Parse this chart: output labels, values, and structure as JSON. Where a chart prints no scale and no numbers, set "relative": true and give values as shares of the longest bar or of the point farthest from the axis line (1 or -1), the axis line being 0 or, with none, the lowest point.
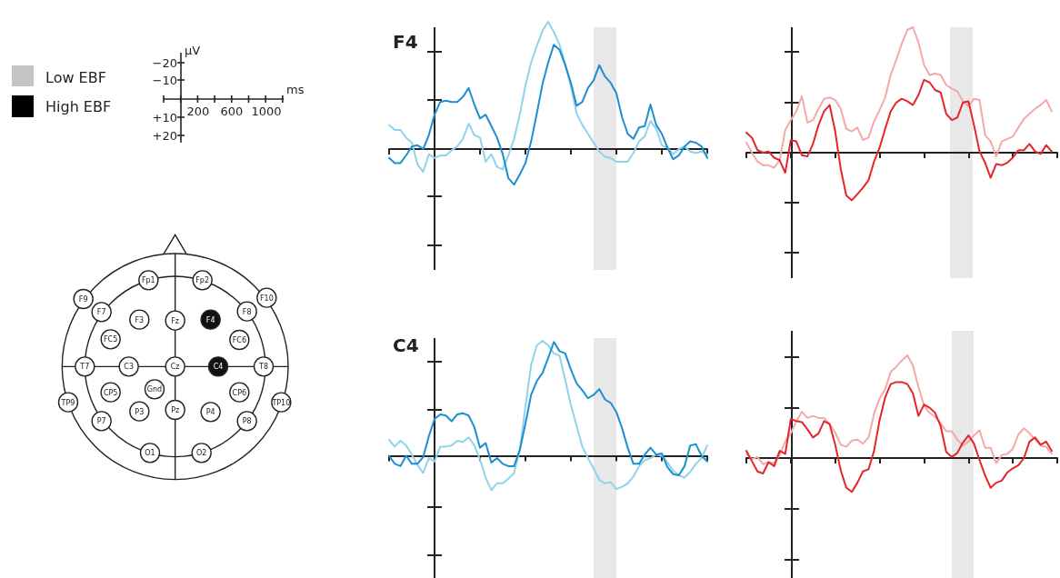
{
  "chart_data": [
    {
      "type": "line",
      "title": "F4",
      "relative": true,
      "categories": [
        null,
        null,
        null,
        null,
        null,
        null,
        null,
        null,
        null,
        null,
        null,
        null,
        null,
        null,
        null,
        null,
        null,
        null,
        null,
        null,
        null,
        null,
        null,
        null,
        null,
        null,
        null,
        null,
        null,
        null,
        null,
        null,
        null,
        null,
        null,
        null,
        null,
        null,
        null,
        null,
        null,
        null,
        null,
        null,
        null,
        null,
        null,
        null,
        null,
        null,
        null,
        null,
        null,
        null,
        null,
        null,
        null
      ],
      "series": [
        {
          "color": "#8fd3ea",
          "values": [
            0.19,
            0.15,
            0.15,
            0.09,
            0.05,
            -0.12,
            -0.18,
            -0.04,
            -0.07,
            -0.05,
            -0.05,
            -0.01,
            0.02,
            0.08,
            0.2,
            0.11,
            0.09,
            -0.1,
            -0.04,
            -0.14,
            -0.16,
            -0.05,
            0.08,
            0.27,
            0.5,
            0.68,
            0.81,
            0.93,
            1,
            0.92,
            0.82,
            0.67,
            0.49,
            0.28,
            0.19,
            0.12,
            0.05,
            -0.02,
            -0.06,
            -0.07,
            -0.1,
            -0.1,
            -0.1,
            -0.03,
            0.06,
            0.1,
            0.22,
            0.16,
            0.03,
            0.01,
            -0.04,
            0,
            0.02,
            -0.02,
            -0.03,
            -0.02,
            -0.04
          ]
        },
        {
          "color": "#1b8fcf",
          "values": [
            -0.07,
            -0.11,
            -0.11,
            -0.05,
            0.02,
            0.03,
            0,
            0.11,
            0.27,
            0.37,
            0.38,
            0.37,
            0.37,
            0.41,
            0.48,
            0.35,
            0.24,
            0.27,
            0.18,
            0.09,
            -0.04,
            -0.23,
            -0.28,
            -0.2,
            -0.11,
            0.06,
            0.28,
            0.51,
            0.68,
            0.82,
            0.78,
            0.66,
            0.52,
            0.34,
            0.37,
            0.48,
            0.54,
            0.66,
            0.57,
            0.52,
            0.44,
            0.25,
            0.12,
            0.08,
            0.17,
            0.18,
            0.35,
            0.19,
            0.12,
            0.01,
            -0.08,
            -0.05,
            0.02,
            0.06,
            0.05,
            0.02,
            -0.07
          ]
        }
      ]
    },
    {
      "type": "line",
      "relative": true,
      "categories": [
        null,
        null,
        null,
        null,
        null,
        null,
        null,
        null,
        null,
        null,
        null,
        null,
        null,
        null,
        null,
        null,
        null,
        null,
        null,
        null,
        null,
        null,
        null,
        null,
        null,
        null,
        null,
        null,
        null,
        null,
        null,
        null,
        null,
        null,
        null,
        null,
        null,
        null,
        null,
        null,
        null,
        null,
        null,
        null,
        null,
        null,
        null,
        null,
        null,
        null,
        null,
        null,
        null,
        null,
        null,
        null,
        null
      ],
      "series": [
        {
          "color": "#f4a9a9",
          "values": [
            0.08,
            0,
            -0.07,
            -0.1,
            -0.1,
            -0.12,
            -0.06,
            0.18,
            0.26,
            0.33,
            0.45,
            0.24,
            0.26,
            0.35,
            0.43,
            0.44,
            0.42,
            0.35,
            0.19,
            0.17,
            0.2,
            0.1,
            0.12,
            0.25,
            0.34,
            0.44,
            0.62,
            0.74,
            0.87,
            0.98,
            1,
            0.88,
            0.7,
            0.62,
            0.63,
            0.62,
            0.54,
            0.51,
            0.49,
            0.41,
            0.37,
            0.43,
            0.42,
            0.14,
            0.09,
            -0.03,
            0.09,
            0.11,
            0.13,
            0.2,
            0.27,
            0.31,
            0.35,
            0.38,
            0.42,
            0.33,
            null
          ]
        },
        {
          "color": "#e4262a",
          "values": [
            0.16,
            0.12,
            0.02,
            0,
            0.01,
            -0.04,
            -0.06,
            -0.16,
            0.1,
            0.09,
            -0.02,
            -0.03,
            0.07,
            0.22,
            0.33,
            0.38,
            0.17,
            -0.13,
            -0.34,
            -0.38,
            -0.33,
            -0.28,
            -0.22,
            -0.07,
            0.04,
            0.19,
            0.33,
            0.4,
            0.43,
            0.41,
            0.38,
            0.46,
            0.58,
            0.56,
            0.5,
            0.48,
            0.31,
            0.26,
            0.28,
            0.4,
            0.41,
            0.22,
            0.01,
            -0.08,
            -0.2,
            -0.09,
            -0.1,
            -0.08,
            -0.04,
            0.02,
            0.02,
            0.07,
            0.01,
            -0.01,
            0.06,
            0.01,
            null
          ]
        }
      ]
    },
    {
      "type": "line",
      "title": "C4",
      "relative": true,
      "categories": [
        null,
        null,
        null,
        null,
        null,
        null,
        null,
        null,
        null,
        null,
        null,
        null,
        null,
        null,
        null,
        null,
        null,
        null,
        null,
        null,
        null,
        null,
        null,
        null,
        null,
        null,
        null,
        null,
        null,
        null,
        null,
        null,
        null,
        null,
        null,
        null,
        null,
        null,
        null,
        null,
        null,
        null,
        null,
        null,
        null,
        null,
        null,
        null,
        null,
        null,
        null,
        null,
        null,
        null,
        null,
        null,
        null
      ],
      "series": [
        {
          "color": "#8fd3ea",
          "values": [
            0.14,
            0.08,
            0.13,
            0.09,
            0.01,
            -0.08,
            -0.15,
            -0.02,
            -0.05,
            0.08,
            0.08,
            0.09,
            0.13,
            0.12,
            0.16,
            0.09,
            -0.03,
            -0.19,
            -0.3,
            -0.24,
            -0.24,
            -0.2,
            -0.15,
            0.05,
            0.43,
            0.79,
            0.96,
            1,
            0.96,
            0.89,
            0.87,
            0.66,
            0.44,
            0.26,
            0.08,
            -0.02,
            -0.11,
            -0.21,
            -0.24,
            -0.23,
            -0.29,
            -0.27,
            -0.24,
            -0.18,
            -0.09,
            -0.04,
            -0.02,
            0.01,
            0,
            -0.06,
            -0.13,
            -0.17,
            -0.19,
            -0.14,
            -0.07,
            -0.02,
            0.09
          ]
        },
        {
          "color": "#1b8fcf",
          "values": [
            0,
            -0.07,
            -0.09,
            0,
            -0.07,
            -0.07,
            -0.01,
            0.17,
            0.32,
            0.36,
            0.35,
            0.3,
            0.36,
            0.37,
            0.35,
            0.25,
            0.07,
            0.11,
            -0.06,
            -0.02,
            -0.07,
            -0.09,
            -0.09,
            0.05,
            0.28,
            0.53,
            0.65,
            0.72,
            0.85,
            0.99,
            0.91,
            0.89,
            0.75,
            0.63,
            0.57,
            0.5,
            0.53,
            0.58,
            0.49,
            0.46,
            0.38,
            0.24,
            0.07,
            -0.07,
            -0.07,
            0.01,
            0.07,
            0.01,
            0.02,
            -0.1,
            -0.16,
            -0.17,
            -0.09,
            0.09,
            0.1,
            0,
            -0.05
          ]
        }
      ]
    },
    {
      "type": "line",
      "relative": true,
      "categories": [
        null,
        null,
        null,
        null,
        null,
        null,
        null,
        null,
        null,
        null,
        null,
        null,
        null,
        null,
        null,
        null,
        null,
        null,
        null,
        null,
        null,
        null,
        null,
        null,
        null,
        null,
        null,
        null,
        null,
        null,
        null,
        null,
        null,
        null,
        null,
        null,
        null,
        null,
        null,
        null,
        null,
        null,
        null,
        null,
        null,
        null,
        null,
        null,
        null,
        null,
        null,
        null,
        null,
        null,
        null,
        null,
        null
      ],
      "series": [
        {
          "color": "#f4a9a9",
          "values": [
            0.04,
            -0.01,
            0.01,
            -0.06,
            -0.04,
            -0.05,
            0.03,
            0.16,
            0.24,
            0.36,
            0.45,
            0.39,
            0.41,
            0.39,
            0.39,
            0.33,
            0.25,
            0.13,
            0.11,
            0.17,
            0.18,
            0.14,
            0.2,
            0.43,
            0.58,
            0.67,
            0.84,
            0.89,
            0.95,
            1,
            0.9,
            0.69,
            0.51,
            0.44,
            0.4,
            0.34,
            0.26,
            0.26,
            0.18,
            0.12,
            0.16,
            0.22,
            0.27,
            0.1,
            0.1,
            -0.05,
            0.03,
            0.04,
            0.09,
            0.23,
            0.29,
            0.24,
            0.18,
            0.12,
            0.11,
            0.04,
            null
          ]
        },
        {
          "color": "#e4262a",
          "values": [
            0.07,
            -0.03,
            -0.13,
            -0.15,
            -0.04,
            -0.08,
            0.07,
            0.04,
            0.38,
            0.36,
            0.35,
            0.28,
            0.2,
            0.24,
            0.36,
            0.33,
            0.13,
            -0.12,
            -0.29,
            -0.33,
            -0.24,
            -0.13,
            -0.11,
            0.07,
            0.37,
            0.59,
            0.72,
            0.74,
            0.74,
            0.72,
            0.63,
            0.41,
            0.52,
            0.49,
            0.44,
            0.31,
            0.06,
            0.01,
            0.05,
            0.15,
            0.22,
            0.14,
            -0.02,
            -0.17,
            -0.29,
            -0.24,
            -0.22,
            -0.14,
            -0.1,
            -0.07,
            0,
            0.16,
            0.2,
            0.13,
            0.16,
            0.07,
            null
          ]
        }
      ]
    },
    {
      "type": "other",
      "annotations": [
        "Low EBF",
        "High EBF",
        "µV",
        "−20",
        "−10",
        "+10",
        "+20",
        "ms",
        "200",
        "600",
        "1000"
      ]
    },
    {
      "type": "other",
      "annotations": [
        "Fp1",
        "Fp2",
        "F9",
        "F10",
        "F7",
        "F3",
        "Fz",
        "F4",
        "F8",
        "FC5",
        "FC6",
        "T7",
        "C3",
        "Cz",
        "C4",
        "T8",
        "TP9",
        "CP5",
        "Gnd",
        "CP6",
        "TP10",
        "P7",
        "P3",
        "Pz",
        "P4",
        "P8",
        "O1",
        "O2"
      ]
    }
  ]
}
